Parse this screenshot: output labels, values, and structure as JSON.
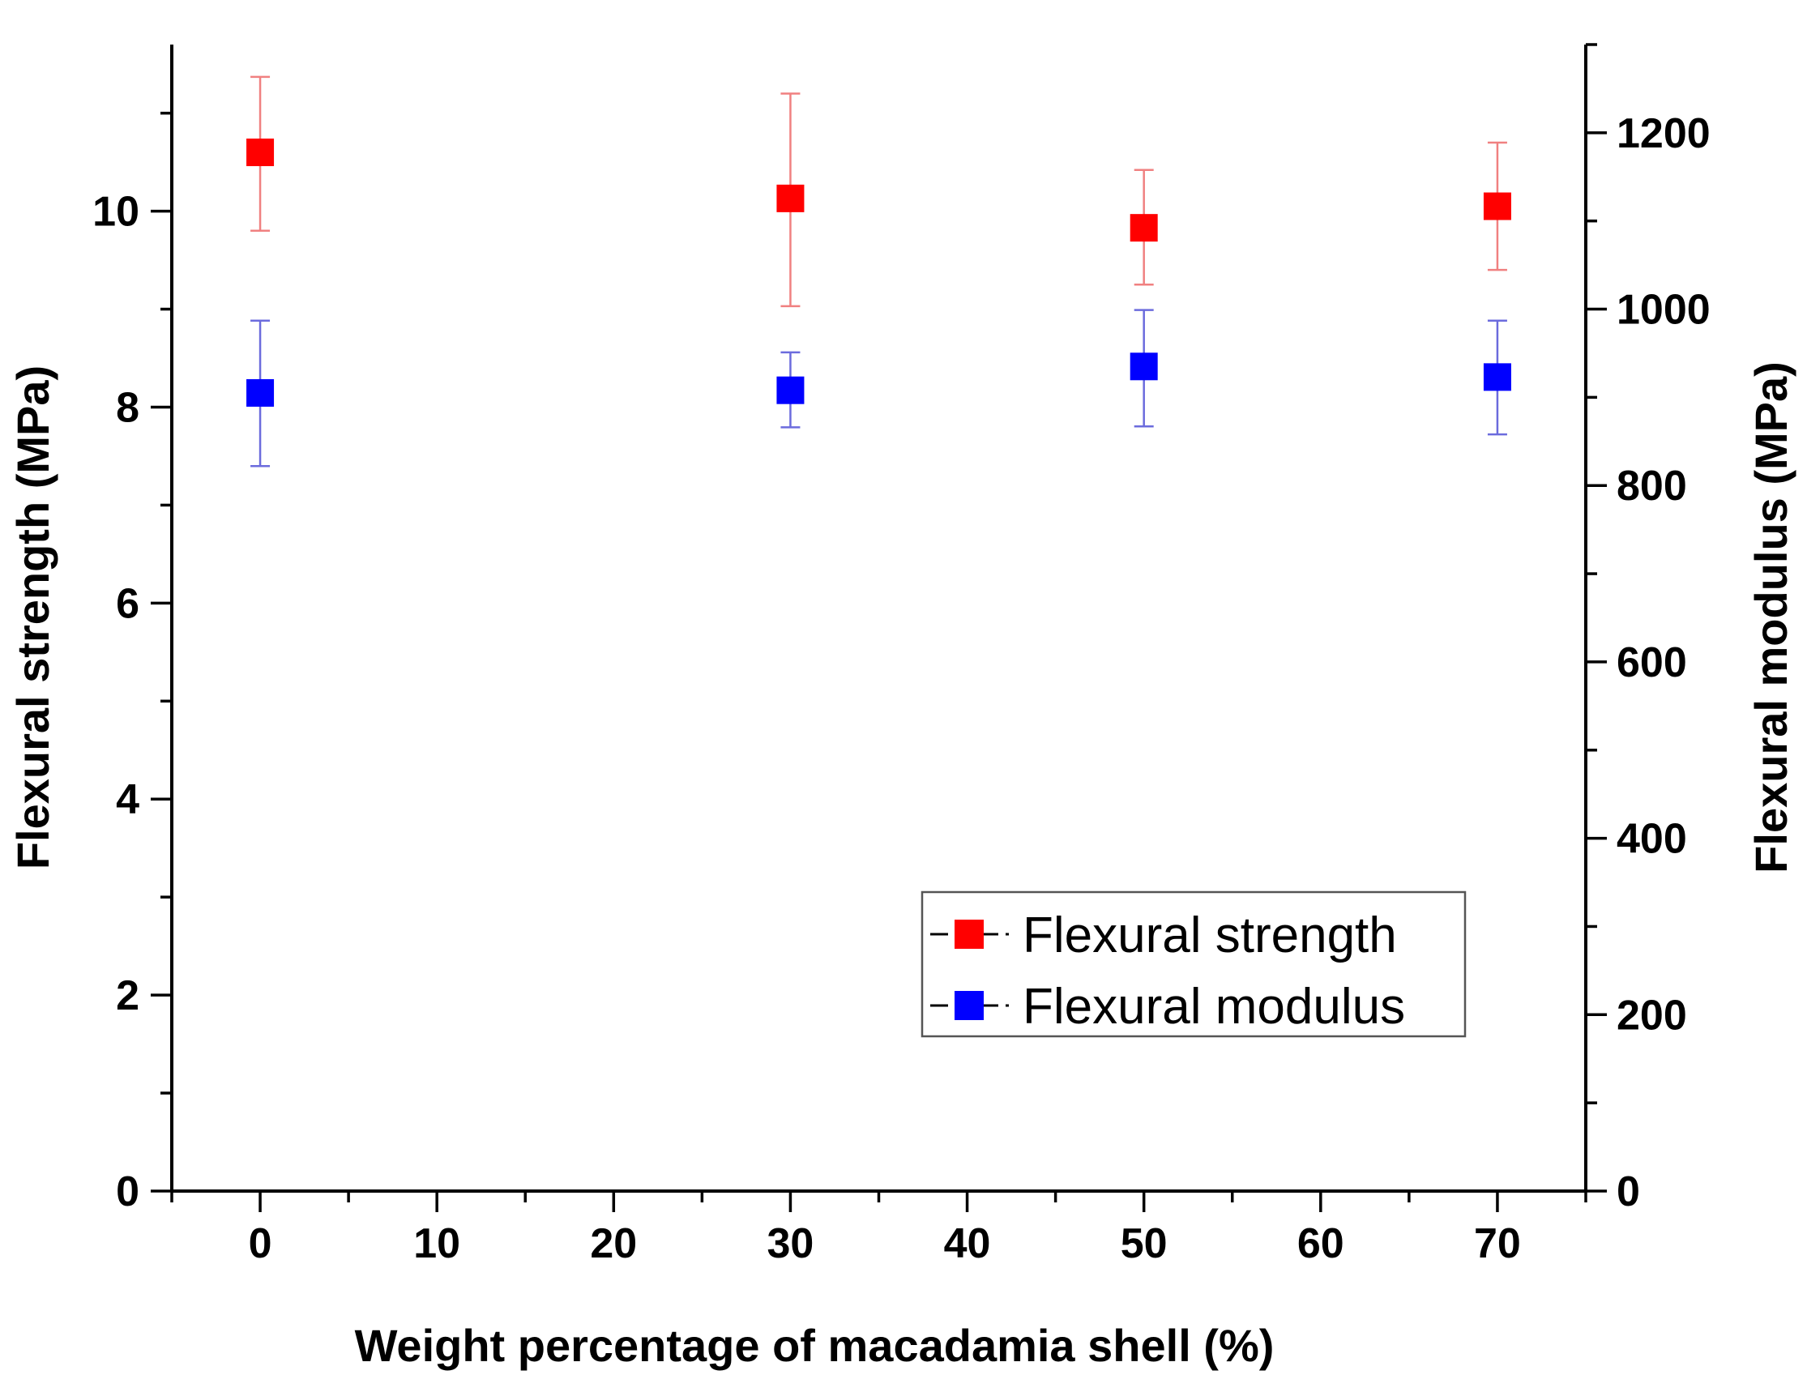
{
  "chart_data": {
    "type": "scatter",
    "title": "",
    "xlabel": "Weight percentage of macadamia shell (%)",
    "ylabel_left": "Flexural strength (MPa)",
    "ylabel_right": "Flexural modulus (MPa)",
    "xlim": [
      -5,
      75
    ],
    "ylim_left": [
      0,
      11.7
    ],
    "ylim_right": [
      0,
      1300
    ],
    "x_ticks": [
      0,
      10,
      20,
      30,
      40,
      50,
      60,
      70
    ],
    "y_left_ticks": [
      0,
      2,
      4,
      6,
      8,
      10
    ],
    "y_right_ticks": [
      0,
      200,
      400,
      600,
      800,
      1000,
      1200
    ],
    "legend_position": "lower-right",
    "series": [
      {
        "name": "Flexural strength",
        "axis": "left",
        "color": "#ff0000",
        "error_color": "#f08080",
        "x": [
          0,
          30,
          50,
          70
        ],
        "y": [
          10.6,
          10.13,
          9.83,
          10.05
        ],
        "err_low": [
          9.8,
          9.03,
          9.25,
          9.4
        ],
        "err_high": [
          11.37,
          11.2,
          10.42,
          10.7
        ]
      },
      {
        "name": "Flexural modulus",
        "axis": "right",
        "color": "#0000ff",
        "error_color": "#6b6bdd",
        "x": [
          0,
          30,
          50,
          70
        ],
        "y": [
          905,
          908,
          935,
          923
        ],
        "err_low": [
          822,
          866,
          867,
          858
        ],
        "err_high": [
          987,
          951,
          999,
          987
        ]
      }
    ]
  }
}
